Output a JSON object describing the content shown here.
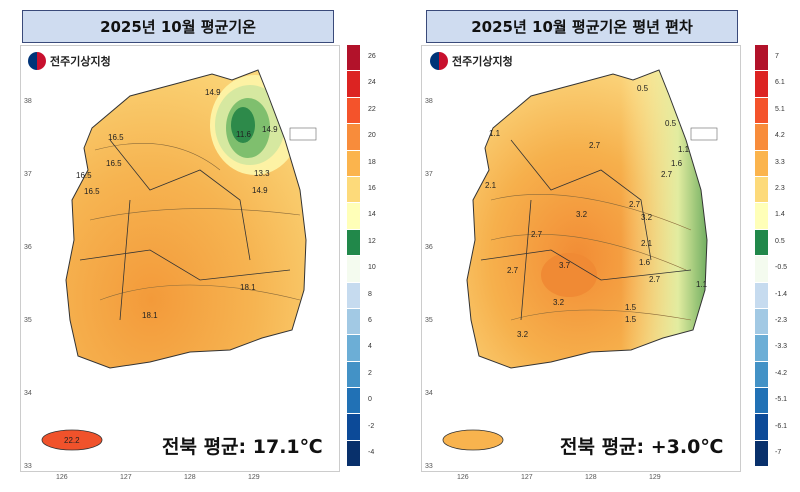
{
  "left": {
    "title": "2025년 10월 평균기온",
    "logo_text": "전주기상지청",
    "average_text": "전북 평균: 17.1℃",
    "colorbar_labels": [
      "26",
      "24",
      "22",
      "20",
      "18",
      "16",
      "14",
      "12",
      "10",
      "8",
      "6",
      "4",
      "2",
      "0",
      "-2",
      "-4"
    ],
    "contour_labels": [
      "14.9",
      "14.9",
      "11.6",
      "13.3",
      "14.9",
      "16.5",
      "16.5",
      "16.5",
      "16.5",
      "18.1",
      "18.1",
      "22.2"
    ]
  },
  "right": {
    "title": "2025년 10월 평균기온 평년 편차",
    "logo_text": "전주기상지청",
    "average_text": "전북 평균: +3.0℃",
    "colorbar_labels": [
      "7",
      "6.1",
      "5.1",
      "4.2",
      "3.3",
      "2.3",
      "1.4",
      "0.5",
      "-0.5",
      "-1.4",
      "-2.3",
      "-3.3",
      "-4.2",
      "-5.1",
      "-6.1",
      "-7"
    ],
    "contour_labels": [
      "0.5",
      "0.5",
      "1.1",
      "1.6",
      "1.1",
      "2.7",
      "2.7",
      "2.7",
      "3.2",
      "3.2",
      "2.1",
      "1.6",
      "2.7",
      "3.7",
      "2.7",
      "2.7",
      "3.2",
      "3.2",
      "2.1",
      "1.5",
      "1.1",
      "1.5"
    ]
  },
  "colorbar_colors": [
    "#b2122a",
    "#dc2322",
    "#f4532b",
    "#f88c3b",
    "#fbb44d",
    "#fdda7a",
    "#ffffb8",
    "#21884a",
    "#f4fbef",
    "#c6dbef",
    "#a2c9e4",
    "#6caed6",
    "#4392c6",
    "#2171b5",
    "#0c4a98",
    "#08306b"
  ],
  "axes": {
    "lat_ticks": [
      "38",
      "37",
      "36",
      "35",
      "34",
      "33"
    ],
    "lon_ticks": [
      "126",
      "127",
      "128",
      "129"
    ]
  }
}
